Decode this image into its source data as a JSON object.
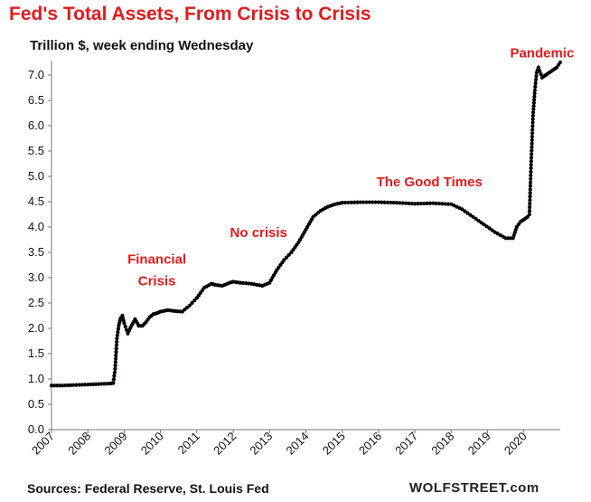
{
  "title": "Fed's Total Assets, From Crisis to Crisis",
  "subtitle": "Trillion $, week ending Wednesday",
  "source": "Sources: Federal Reserve, St. Louis Fed",
  "watermark": "WOLFSTREET.com",
  "colors": {
    "title": "#e31a1c",
    "line": "#e31a1c",
    "markers": "#000000",
    "annotation": "#e31a1c"
  },
  "chart_data": {
    "type": "line",
    "ylim": [
      0.0,
      7.0
    ],
    "yticks": [
      "0.0",
      "0.5",
      "1.0",
      "1.5",
      "2.0",
      "2.5",
      "3.0",
      "3.5",
      "4.0",
      "4.5",
      "5.0",
      "5.5",
      "6.0",
      "6.5",
      "7.0"
    ],
    "xlim": [
      2007.0,
      2021.0
    ],
    "xticks": [
      "2007",
      "2008",
      "2009",
      "2010",
      "2011",
      "2012",
      "2013",
      "2014",
      "2015",
      "2016",
      "2017",
      "2018",
      "2019",
      "2020"
    ],
    "grid": false,
    "legend": "none",
    "annotations": [
      {
        "lines": [
          "Financial",
          "Crisis"
        ],
        "x": 2009.9,
        "y": 3.28
      },
      {
        "lines": [
          "No crisis"
        ],
        "x": 2012.7,
        "y": 3.8
      },
      {
        "lines": [
          "The Good Times"
        ],
        "x": 2017.4,
        "y": 4.8
      },
      {
        "lines": [
          "Pandemic"
        ],
        "x": 2020.5,
        "y": 7.35
      }
    ],
    "series": [
      {
        "x": [
          2007.0,
          2007.3,
          2007.6,
          2008.0,
          2008.3,
          2008.6,
          2008.7,
          2008.75,
          2008.8,
          2008.85,
          2008.9,
          2008.95,
          2009.0,
          2009.1,
          2009.2,
          2009.3,
          2009.4,
          2009.5,
          2009.6,
          2009.7,
          2009.8,
          2009.9,
          2010.0,
          2010.2,
          2010.4,
          2010.6,
          2010.8,
          2011.0,
          2011.2,
          2011.4,
          2011.5,
          2011.7,
          2011.9,
          2012.0,
          2012.2,
          2012.5,
          2012.8,
          2013.0,
          2013.2,
          2013.4,
          2013.6,
          2013.8,
          2014.0,
          2014.2,
          2014.4,
          2014.6,
          2014.8,
          2015.0,
          2015.5,
          2016.0,
          2016.5,
          2017.0,
          2017.5,
          2018.0,
          2018.3,
          2018.6,
          2018.9,
          2019.2,
          2019.5,
          2019.7,
          2019.8,
          2019.9,
          2020.0,
          2020.1,
          2020.15,
          2020.2,
          2020.25,
          2020.3,
          2020.35,
          2020.4,
          2020.5,
          2020.6,
          2020.7,
          2020.8,
          2020.9,
          2021.0
        ],
        "y": [
          0.87,
          0.87,
          0.88,
          0.89,
          0.9,
          0.91,
          0.92,
          1.2,
          1.8,
          2.05,
          2.2,
          2.25,
          2.1,
          1.9,
          2.05,
          2.18,
          2.05,
          2.05,
          2.12,
          2.22,
          2.28,
          2.3,
          2.33,
          2.36,
          2.34,
          2.33,
          2.45,
          2.6,
          2.8,
          2.88,
          2.86,
          2.84,
          2.9,
          2.92,
          2.9,
          2.88,
          2.84,
          2.9,
          3.15,
          3.35,
          3.5,
          3.7,
          3.95,
          4.2,
          4.32,
          4.4,
          4.45,
          4.48,
          4.49,
          4.49,
          4.48,
          4.46,
          4.47,
          4.45,
          4.35,
          4.2,
          4.05,
          3.9,
          3.78,
          3.78,
          4.0,
          4.1,
          4.15,
          4.2,
          4.25,
          5.3,
          6.2,
          6.7,
          7.05,
          7.15,
          6.95,
          7.0,
          7.05,
          7.1,
          7.15,
          7.25
        ]
      }
    ]
  }
}
